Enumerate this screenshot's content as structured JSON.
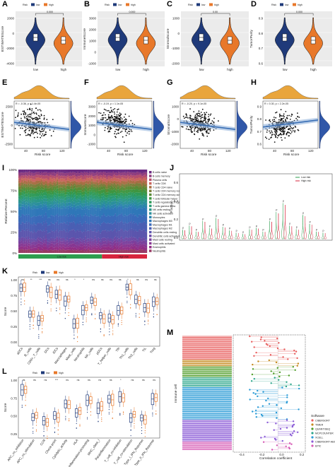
{
  "figure": {
    "panel_letters": [
      "A",
      "B",
      "C",
      "D",
      "E",
      "F",
      "G",
      "H",
      "I",
      "J",
      "K",
      "L",
      "M"
    ]
  },
  "colors": {
    "low": "#1f3a7a",
    "high": "#e8782a",
    "red_bar": "#d7263d",
    "green_bar": "#2e9e4f",
    "scatter_dot": "#111111",
    "reg_line": "#3a6fb5"
  },
  "violin_panels": [
    {
      "letter": "A",
      "ylabel": "ESTIMATEScore",
      "pval": "0.000",
      "legend_title": "Risk",
      "legend_low": "low",
      "legend_high": "high",
      "yticks": [
        "2000",
        "0",
        "-2000",
        "-4000"
      ],
      "xticks": [
        "low",
        "high"
      ]
    },
    {
      "letter": "B",
      "ylabel": "ImmuneScore",
      "pval": "0.000",
      "legend_title": "Risk",
      "legend_low": "low",
      "legend_high": "high",
      "yticks": [
        "3000",
        "2000",
        "1000",
        "0",
        "-1000"
      ],
      "xticks": [
        "low",
        "high"
      ]
    },
    {
      "letter": "C",
      "ylabel": "StromalScore",
      "pval": "0.00",
      "legend_title": "Risk",
      "legend_low": "low",
      "legend_high": "high",
      "yticks": [
        "1000",
        "0",
        "-1000",
        "-2000"
      ],
      "xticks": [
        "low",
        "high"
      ]
    },
    {
      "letter": "D",
      "ylabel": "TumorPurity",
      "pval": "0.000",
      "legend_title": "Risk",
      "legend_low": "low",
      "legend_high": "high",
      "yticks": [
        "0.9",
        "0.8",
        "0.7",
        "0.6"
      ],
      "xticks": [
        "low",
        "high"
      ]
    }
  ],
  "scatter_panels": [
    {
      "letter": "E",
      "ylabel": "ESTIMATEScore",
      "xlabel": "Risk score",
      "stat": "R = -0.36, p = 1.4e-05",
      "xticks": [
        "40",
        "80",
        "120"
      ],
      "yticks": [
        "2500",
        "0",
        "-2500"
      ]
    },
    {
      "letter": "F",
      "ylabel": "ImmuneScore",
      "xlabel": "Risk score",
      "stat": "R = -0.19, p = 1.1e-05",
      "xticks": [
        "40",
        "80",
        "120"
      ],
      "yticks": [
        "3000",
        "2000",
        "1000",
        "0",
        "-1000"
      ]
    },
    {
      "letter": "G",
      "ylabel": "StromalScore",
      "xlabel": "Risk score",
      "stat": "R = -0.20, p = 9.1e-05",
      "xticks": [
        "40",
        "80",
        "120"
      ],
      "yticks": [
        "1000",
        "0",
        "-1000",
        "-2000"
      ]
    },
    {
      "letter": "H",
      "ylabel": "TumorPurity",
      "xlabel": "Risk score",
      "stat": "R = 0.30, p = 2.2e-05",
      "xticks": [
        "40",
        "80",
        "120"
      ],
      "yticks": [
        "0.9",
        "0.8",
        "0.7",
        "0.6"
      ]
    }
  ],
  "panel_I": {
    "ylabel": "Relative Percent",
    "yticks": [
      "100%",
      "75%",
      "50%",
      "25%",
      "0%"
    ],
    "group_low": "Low risk",
    "group_high": "High risk",
    "legend": [
      "B cells naive",
      "B cells memory",
      "Plasma cells",
      "T cells CD8",
      "T cells CD4 naive",
      "T cells CD4 memory resting",
      "T cells CD4 memory activated",
      "T cells follicular helper",
      "T cells regulatory (Tregs)",
      "T cells gamma delta",
      "NK cells resting",
      "NK cells activated",
      "Monocytes",
      "Macrophages M0",
      "Macrophages M1",
      "Macrophages M2",
      "Dendritic cells resting",
      "Dendritic cells activated",
      "Mast cells resting",
      "Mast cells activated",
      "Eosinophils",
      "Neutrophils"
    ]
  },
  "panel_J": {
    "legend_low": "Low risk",
    "legend_high": "High risk",
    "ylabel": "Fraction",
    "yticks": [
      "0.6",
      "0.4",
      "0.2",
      "0.0"
    ]
  },
  "panel_K": {
    "legend_title": "Risk",
    "legend_low": "low",
    "legend_high": "high",
    "ylabel": "Score",
    "yticks": [
      "1.00",
      "0.75",
      "0.50",
      "0.25",
      "0.00"
    ],
    "categories": [
      "aDCs",
      "B_cells",
      "CD8+_T_cells",
      "DCs",
      "iDCs",
      "Macrophages",
      "Mast_cells",
      "Neutrophils",
      "NK_cells",
      "pDCs",
      "T_helper_cells",
      "Tfh",
      "Th1_cells",
      "Th2_cells",
      "TIL",
      "Treg"
    ],
    "sig": [
      "ns",
      "**",
      "***",
      "ns",
      "ns",
      "ns",
      "*",
      "*",
      "ns",
      "ns",
      "ns",
      "ns",
      "*",
      "ns",
      "ns",
      "ns"
    ]
  },
  "panel_L": {
    "legend_title": "Risk",
    "legend_low": "low",
    "legend_high": "high",
    "ylabel": "Score",
    "yticks": [
      "1.00",
      "0.75",
      "0.50",
      "0.25"
    ],
    "categories": [
      "APC_co_inhibition",
      "APC_co_stimulation",
      "CCR",
      "Check-point",
      "Cytolytic_activity",
      "HLA",
      "Inflammation-promoting",
      "MHC_class_I",
      "Parainflammation",
      "T_cell_co-inhibition",
      "T_cell_co-stimulation",
      "Type_I_IFN_Reponse",
      "Type_II_IFN_Reponse"
    ],
    "sig": [
      "ns",
      "ns",
      "ns",
      "***",
      "ns",
      "ns",
      "ns",
      "ns",
      "ns",
      "*",
      "ns",
      "ns",
      "ns"
    ]
  },
  "panel_M": {
    "xlabel": "Correlation coefficient",
    "ylabel": "Immune cell",
    "xticks": [
      "-0.4",
      "-0.2",
      "0.0",
      "0.2"
    ],
    "legend_title": "Software",
    "software": [
      {
        "name": "CIBERSORT",
        "color": "#e85d5d"
      },
      {
        "name": "TIMER",
        "color": "#c58a1e"
      },
      {
        "name": "QUANTISEQ",
        "color": "#4f9d2a"
      },
      {
        "name": "MCPCOUNTER",
        "color": "#2aa58a"
      },
      {
        "name": "XCELL",
        "color": "#2a9bd6"
      },
      {
        "name": "CIBERSORT-ABS",
        "color": "#8a5ad6"
      },
      {
        "name": "EPIC",
        "color": "#d65ab5"
      }
    ]
  }
}
